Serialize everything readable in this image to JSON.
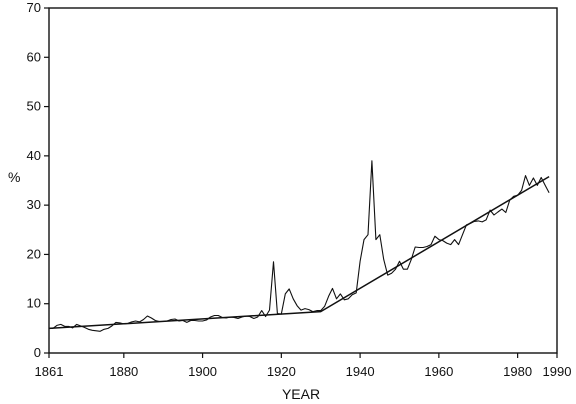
{
  "chart_data": {
    "type": "line",
    "title": "",
    "xlabel": "YEAR",
    "ylabel": "%",
    "xlim": [
      1861,
      1990
    ],
    "ylim": [
      0,
      70
    ],
    "x_ticks": [
      1861,
      1880,
      1900,
      1920,
      1940,
      1960,
      1980,
      1990
    ],
    "y_ticks": [
      0,
      10,
      20,
      30,
      40,
      50,
      60,
      70
    ],
    "grid": false,
    "series": [
      {
        "values_x": [
          1861,
          1862,
          1863,
          1864,
          1865,
          1866,
          1867,
          1868,
          1869,
          1870,
          1871,
          1872,
          1873,
          1874,
          1875,
          1876,
          1877,
          1878,
          1879,
          1880,
          1881,
          1882,
          1883,
          1884,
          1885,
          1886,
          1887,
          1888,
          1889,
          1890,
          1891,
          1892,
          1893,
          1894,
          1895,
          1896,
          1897,
          1898,
          1899,
          1900,
          1901,
          1902,
          1903,
          1904,
          1905,
          1906,
          1907,
          1908,
          1909,
          1910,
          1911,
          1912,
          1913,
          1914,
          1915,
          1916,
          1917,
          1918,
          1919,
          1920,
          1921,
          1922,
          1923,
          1924,
          1925,
          1926,
          1927,
          1928,
          1929,
          1930,
          1931,
          1932,
          1933,
          1934,
          1935,
          1936,
          1937,
          1938,
          1939,
          1940,
          1941,
          1942,
          1943,
          1944,
          1945,
          1946,
          1947,
          1948,
          1949,
          1950,
          1951,
          1952,
          1953,
          1954,
          1955,
          1956,
          1957,
          1958,
          1959,
          1960,
          1961,
          1962,
          1963,
          1964,
          1965,
          1966,
          1967,
          1968,
          1969,
          1970,
          1971,
          1972,
          1973,
          1974,
          1975,
          1976,
          1977,
          1978,
          1979,
          1980,
          1981,
          1982,
          1983,
          1984,
          1985,
          1986,
          1987,
          1988
        ],
        "values_y": [
          5.0,
          5.0,
          5.6,
          5.8,
          5.4,
          5.4,
          5.1,
          5.8,
          5.5,
          5.2,
          4.8,
          4.6,
          4.5,
          4.4,
          4.8,
          5.0,
          5.5,
          6.2,
          6.1,
          5.9,
          6.0,
          6.3,
          6.5,
          6.3,
          6.8,
          7.5,
          7.1,
          6.6,
          6.4,
          6.4,
          6.5,
          6.8,
          6.9,
          6.5,
          6.6,
          6.2,
          6.6,
          6.6,
          6.5,
          6.5,
          6.7,
          7.3,
          7.6,
          7.6,
          7.2,
          7.1,
          7.3,
          7.2,
          7.0,
          7.3,
          7.5,
          7.4,
          7.0,
          7.3,
          8.6,
          7.4,
          8.7,
          18.5,
          8.0,
          7.9,
          12.0,
          13.0,
          11.0,
          9.6,
          8.7,
          9.0,
          8.8,
          8.4,
          8.6,
          8.6,
          9.5,
          11.5,
          13.1,
          11.0,
          12.0,
          10.8,
          11.0,
          11.8,
          12.2,
          18.6,
          23.0,
          24.0,
          39.0,
          23.0,
          24.0,
          19.0,
          15.8,
          16.2,
          17.0,
          18.6,
          17.0,
          17.0,
          19.0,
          21.5,
          21.4,
          21.4,
          21.6,
          22.0,
          23.7,
          23.0,
          22.8,
          22.3,
          22.0,
          23.0,
          22.0,
          24.0,
          26.0,
          26.3,
          26.7,
          26.8,
          26.6,
          27.0,
          29.0,
          28.0,
          28.6,
          29.2,
          28.5,
          31.0,
          31.8,
          32.0,
          33.0,
          36.0,
          34.0,
          35.5,
          34.0,
          35.6,
          34.0,
          32.5
        ]
      },
      {
        "values_x": [
          1861,
          1930,
          1988
        ],
        "values_y": [
          5.0,
          8.4,
          35.8
        ]
      }
    ]
  }
}
